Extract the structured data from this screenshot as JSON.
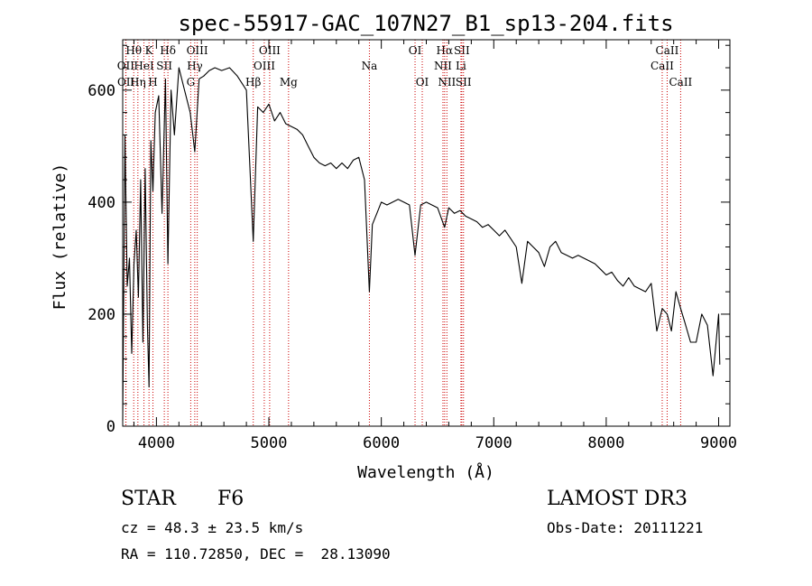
{
  "chart_data": {
    "type": "line",
    "title": "spec-55917-GAC_107N27_B1_sp13-204.fits",
    "xlabel": "Wavelength (Å)",
    "ylabel": "Flux (relative)",
    "xlim": [
      3700,
      9100
    ],
    "ylim": [
      0,
      690
    ],
    "x_ticks": [
      "4000",
      "5000",
      "6000",
      "7000",
      "8000",
      "9000"
    ],
    "y_ticks": [
      "0",
      "200",
      "400",
      "600"
    ],
    "grid": false,
    "line_color": "#000000",
    "marker_color": "#cc0000",
    "spectral_lines": [
      {
        "label": "Hθ",
        "x": 3798,
        "row": 0
      },
      {
        "label": "OII",
        "x": 3727,
        "row": 1
      },
      {
        "label": "OII",
        "x": 3729,
        "row": 2
      },
      {
        "label": "K",
        "x": 3934,
        "row": 0
      },
      {
        "label": "HeI",
        "x": 3889,
        "row": 1
      },
      {
        "label": "Hη",
        "x": 3835,
        "row": 2
      },
      {
        "label": "Hδ",
        "x": 4102,
        "row": 0
      },
      {
        "label": "SII",
        "x": 4070,
        "row": 1
      },
      {
        "label": "H",
        "x": 3969,
        "row": 2
      },
      {
        "label": "OIII",
        "x": 4363,
        "row": 0
      },
      {
        "label": "Hγ",
        "x": 4341,
        "row": 1
      },
      {
        "label": "G",
        "x": 4305,
        "row": 2
      },
      {
        "label": "OIII",
        "x": 5007,
        "row": 0
      },
      {
        "label": "OIII",
        "x": 4959,
        "row": 1
      },
      {
        "label": "Hβ",
        "x": 4861,
        "row": 2
      },
      {
        "label": "Mg",
        "x": 5175,
        "row": 2
      },
      {
        "label": "Na",
        "x": 5894,
        "row": 1
      },
      {
        "label": "OI",
        "x": 6300,
        "row": 0
      },
      {
        "label": "OI",
        "x": 6364,
        "row": 2
      },
      {
        "label": "Hα",
        "x": 6563,
        "row": 0
      },
      {
        "label": "NII",
        "x": 6548,
        "row": 1
      },
      {
        "label": "NII",
        "x": 6583,
        "row": 2
      },
      {
        "label": "SII",
        "x": 6716,
        "row": 0
      },
      {
        "label": "Li",
        "x": 6708,
        "row": 1
      },
      {
        "label": "SII",
        "x": 6731,
        "row": 2
      },
      {
        "label": "CaII",
        "x": 8542,
        "row": 0
      },
      {
        "label": "CaII",
        "x": 8498,
        "row": 1
      },
      {
        "label": "CaII",
        "x": 8662,
        "row": 2
      }
    ],
    "series": [
      {
        "x": [
          3700,
          3720,
          3740,
          3760,
          3780,
          3800,
          3820,
          3840,
          3860,
          3880,
          3900,
          3920,
          3934,
          3950,
          3969,
          3990,
          4020,
          4050,
          4080,
          4102,
          4130,
          4160,
          4200,
          4250,
          4300,
          4341,
          4380,
          4420,
          4470,
          4520,
          4580,
          4650,
          4720,
          4800,
          4861,
          4900,
          4950,
          5000,
          5050,
          5100,
          5150,
          5200,
          5250,
          5300,
          5350,
          5400,
          5450,
          5500,
          5550,
          5600,
          5650,
          5700,
          5750,
          5800,
          5850,
          5894,
          5920,
          5960,
          6000,
          6050,
          6100,
          6150,
          6200,
          6250,
          6300,
          6350,
          6400,
          6450,
          6500,
          6563,
          6600,
          6650,
          6700,
          6750,
          6800,
          6850,
          6900,
          6950,
          7000,
          7050,
          7100,
          7150,
          7200,
          7250,
          7300,
          7350,
          7400,
          7450,
          7500,
          7550,
          7600,
          7650,
          7700,
          7750,
          7800,
          7850,
          7900,
          7950,
          8000,
          8050,
          8100,
          8150,
          8200,
          8250,
          8300,
          8350,
          8400,
          8450,
          8498,
          8542,
          8580,
          8620,
          8662,
          8700,
          8750,
          8800,
          8850,
          8900,
          8950,
          9000,
          9010
        ],
        "y": [
          10,
          520,
          250,
          300,
          130,
          290,
          350,
          230,
          440,
          150,
          460,
          180,
          70,
          510,
          420,
          560,
          590,
          380,
          620,
          290,
          600,
          520,
          640,
          600,
          560,
          490,
          620,
          625,
          635,
          640,
          635,
          640,
          625,
          600,
          330,
          570,
          560,
          575,
          545,
          560,
          540,
          535,
          530,
          520,
          500,
          480,
          470,
          465,
          470,
          460,
          470,
          460,
          475,
          480,
          440,
          240,
          360,
          380,
          400,
          395,
          400,
          405,
          400,
          395,
          305,
          395,
          400,
          395,
          390,
          355,
          390,
          380,
          385,
          375,
          370,
          365,
          355,
          360,
          350,
          340,
          350,
          335,
          320,
          255,
          330,
          320,
          310,
          285,
          320,
          330,
          310,
          305,
          300,
          305,
          300,
          295,
          290,
          280,
          270,
          275,
          260,
          250,
          265,
          250,
          245,
          240,
          255,
          170,
          210,
          200,
          170,
          240,
          210,
          185,
          150,
          150,
          200,
          180,
          90,
          200,
          110
        ]
      }
    ]
  },
  "info": {
    "object_class": "STAR",
    "spectral_type": "F6",
    "redshift": "cz = 48.3 ± 23.5 km/s",
    "coords": "RA = 110.72850, DEC =  28.13090",
    "survey": "LAMOST DR3",
    "obs_date": "Obs-Date: 20111221"
  }
}
